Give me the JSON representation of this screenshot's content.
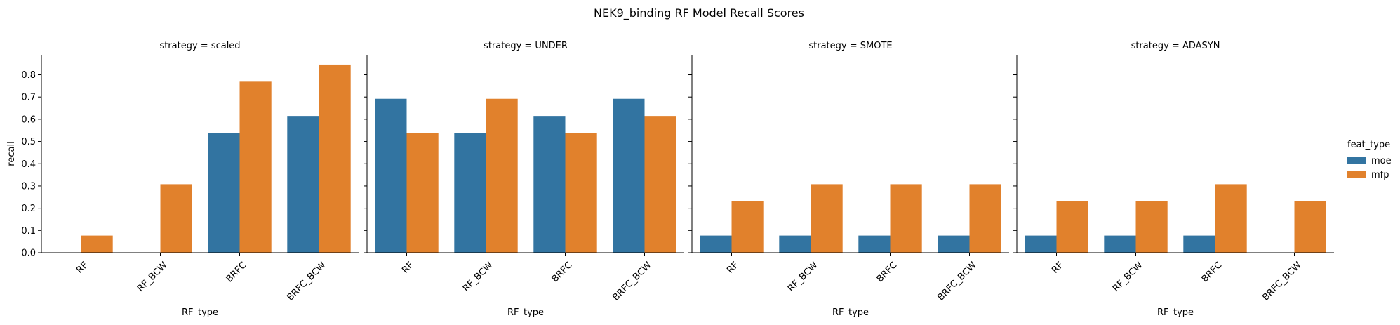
{
  "chart_data": {
    "type": "bar",
    "title": "NEK9_binding RF Model Recall Scores",
    "xlabel": "RF_type",
    "ylabel": "recall",
    "ylim": [
      0,
      0.89
    ],
    "yticks": [
      0.0,
      0.1,
      0.2,
      0.3,
      0.4,
      0.5,
      0.6,
      0.7,
      0.8
    ],
    "ytick_labels": [
      "0.0",
      "0.1",
      "0.2",
      "0.3",
      "0.4",
      "0.5",
      "0.6",
      "0.7",
      "0.8"
    ],
    "categories": [
      "RF",
      "RF_BCW",
      "BRFC",
      "BRFC_BCW"
    ],
    "grid": false,
    "legend": {
      "title": "feat_type",
      "placement": "right",
      "entries": [
        {
          "name": "moe",
          "color": "#3274a1"
        },
        {
          "name": "mfp",
          "color": "#e1812c"
        }
      ]
    },
    "facets": [
      {
        "title": "strategy = scaled",
        "series": [
          {
            "name": "moe",
            "values": [
              0.0,
              0.0,
              0.538,
              0.615
            ]
          },
          {
            "name": "mfp",
            "values": [
              0.077,
              0.308,
              0.769,
              0.846
            ]
          }
        ]
      },
      {
        "title": "strategy = UNDER",
        "series": [
          {
            "name": "moe",
            "values": [
              0.692,
              0.538,
              0.615,
              0.692
            ]
          },
          {
            "name": "mfp",
            "values": [
              0.538,
              0.692,
              0.538,
              0.615
            ]
          }
        ]
      },
      {
        "title": "strategy = SMOTE",
        "series": [
          {
            "name": "moe",
            "values": [
              0.077,
              0.077,
              0.077,
              0.077
            ]
          },
          {
            "name": "mfp",
            "values": [
              0.231,
              0.308,
              0.308,
              0.308
            ]
          }
        ]
      },
      {
        "title": "strategy = ADASYN",
        "series": [
          {
            "name": "moe",
            "values": [
              0.077,
              0.077,
              0.077,
              0.0
            ]
          },
          {
            "name": "mfp",
            "values": [
              0.231,
              0.231,
              0.308,
              0.231
            ]
          }
        ]
      }
    ]
  }
}
